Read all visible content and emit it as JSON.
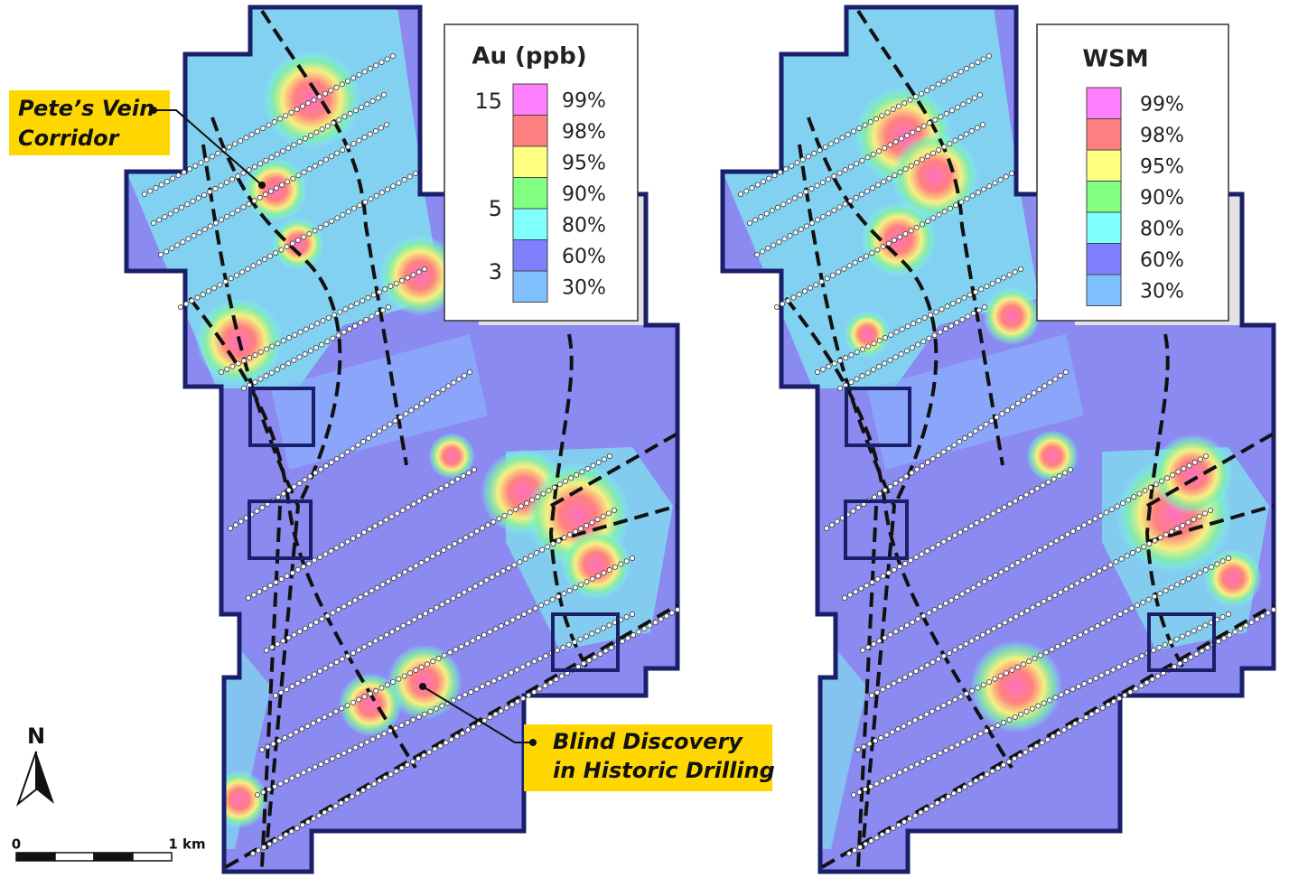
{
  "maps": [
    {
      "legend": {
        "title": "Au (ppb)",
        "scale_labels": [
          "15",
          "5",
          "3"
        ],
        "entries": [
          {
            "label": "99%",
            "color": "#ff80ff"
          },
          {
            "label": "98%",
            "color": "#ff8080"
          },
          {
            "label": "95%",
            "color": "#ffff80"
          },
          {
            "label": "90%",
            "color": "#80ff80"
          },
          {
            "label": "80%",
            "color": "#80ffff"
          },
          {
            "label": "60%",
            "color": "#8080ff"
          },
          {
            "label": "30%",
            "color": "#80c0ff"
          }
        ]
      }
    },
    {
      "legend": {
        "title": "WSM",
        "entries": [
          {
            "label": "99%",
            "color": "#ff80ff"
          },
          {
            "label": "98%",
            "color": "#ff8080"
          },
          {
            "label": "95%",
            "color": "#ffff80"
          },
          {
            "label": "90%",
            "color": "#80ff80"
          },
          {
            "label": "80%",
            "color": "#80ffff"
          },
          {
            "label": "60%",
            "color": "#8080ff"
          },
          {
            "label": "30%",
            "color": "#80c0ff"
          }
        ]
      }
    }
  ],
  "callouts": [
    {
      "lines": [
        "Pete’s Vein",
        "Corridor"
      ]
    },
    {
      "lines": [
        "Blind Discovery",
        "in Historic Drilling"
      ]
    }
  ],
  "north_arrow": {
    "label": "N"
  },
  "scale_bar": {
    "start_label": "0",
    "end_label": "1 km"
  }
}
